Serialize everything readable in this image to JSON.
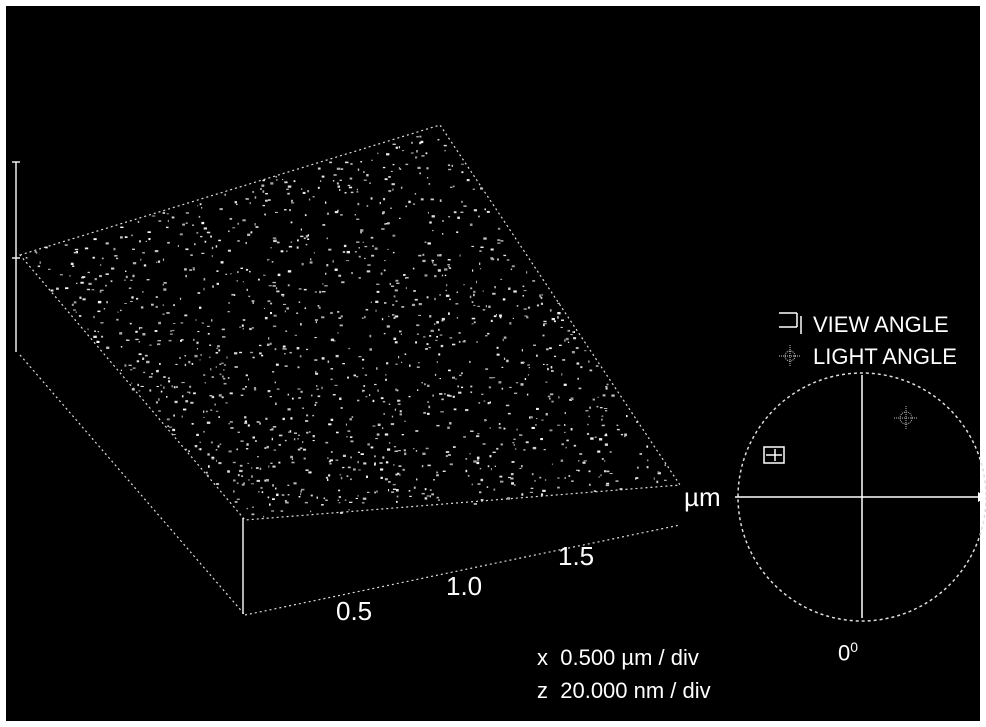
{
  "axis": {
    "ticks": [
      "0.5",
      "1.0",
      "1.5"
    ],
    "unit": "µm"
  },
  "scale": {
    "x_label": "x",
    "x_value": "0.500 µm / div",
    "z_label": "z",
    "z_value": "20.000 nm / div"
  },
  "legend": {
    "view_angle": "VIEW ANGLE",
    "light_angle": "LIGHT ANGLE"
  },
  "compass": {
    "zero_label": "0",
    "zero_superscript": "0"
  },
  "colors": {
    "background": "#000000",
    "foreground": "#ffffff"
  }
}
